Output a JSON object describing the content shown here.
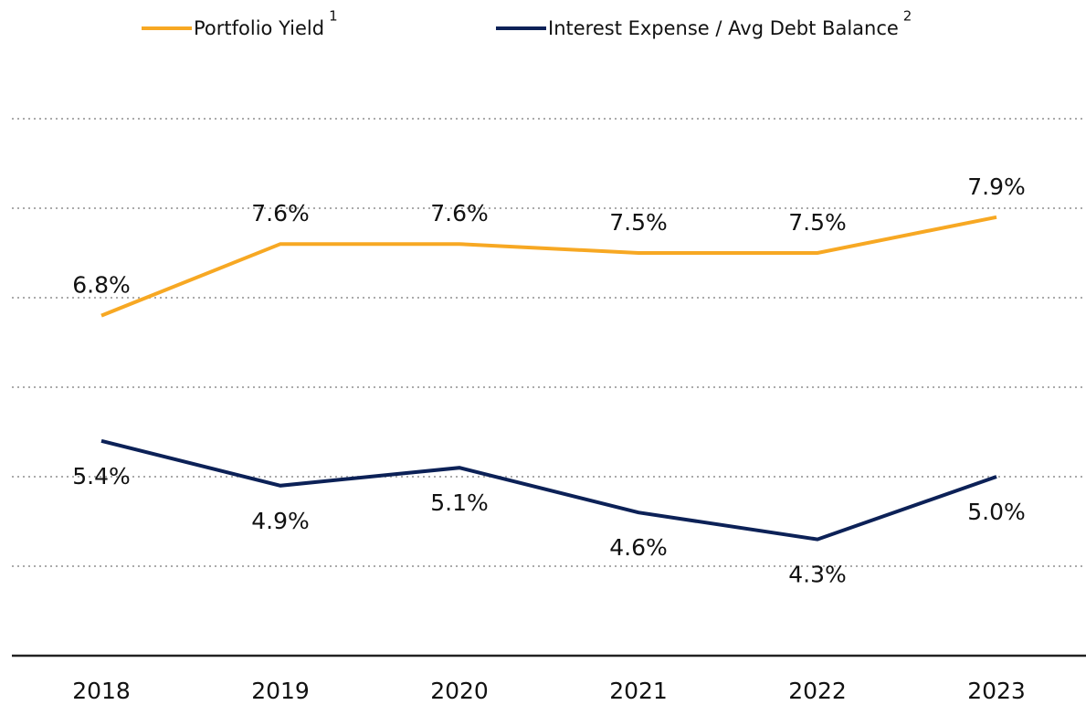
{
  "chart_data": {
    "type": "line",
    "categories": [
      "2018",
      "2019",
      "2020",
      "2021",
      "2022",
      "2023"
    ],
    "series": [
      {
        "name": "Portfolio Yield",
        "note": "1",
        "color": "#f7a823",
        "label_position": "above",
        "values": [
          6.8,
          7.6,
          7.6,
          7.5,
          7.5,
          7.9
        ],
        "value_labels": [
          "6.8%",
          "7.6%",
          "7.6%",
          "7.5%",
          "7.5%",
          "7.9%"
        ]
      },
      {
        "name": "Interest Expense / Avg Debt Balance",
        "note": "2",
        "color": "#0c2157",
        "label_position": "below",
        "values": [
          5.4,
          4.9,
          5.1,
          4.6,
          4.3,
          5.0
        ],
        "value_labels": [
          "5.4%",
          "4.9%",
          "5.1%",
          "4.6%",
          "4.3%",
          "5.0%"
        ]
      }
    ],
    "ylim": [
      3,
      9
    ],
    "yticks": [
      4,
      5,
      6,
      7,
      8,
      9
    ],
    "grid": true,
    "legend": "top"
  }
}
